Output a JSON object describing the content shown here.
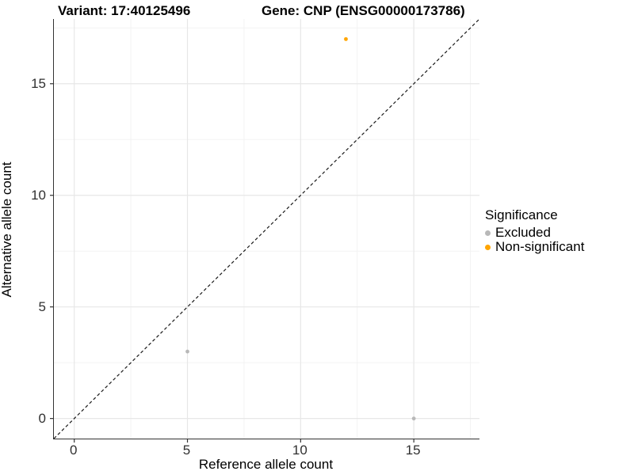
{
  "title": {
    "variant": "Variant: 17:40125496",
    "gene": "Gene: CNP (ENSG00000173786)"
  },
  "chart_data": {
    "type": "scatter",
    "xlabel": "Reference allele count",
    "ylabel": "Alternative allele count",
    "xlim": [
      -0.9,
      17.9
    ],
    "ylim": [
      -0.9,
      17.9
    ],
    "x_ticks": [
      0,
      5,
      10,
      15
    ],
    "y_ticks": [
      0,
      5,
      10,
      15
    ],
    "minor_step": 2.5,
    "grid": true,
    "abline": {
      "slope": 1,
      "intercept": 0,
      "dash": true,
      "color": "#1a1a1a"
    },
    "series": [
      {
        "name": "Excluded",
        "color": "#b8b8b8",
        "points": [
          [
            5,
            3
          ],
          [
            15,
            0
          ]
        ]
      },
      {
        "name": "Non-significant",
        "color": "#ffa500",
        "points": [
          [
            12,
            17
          ]
        ]
      }
    ],
    "legend": {
      "title": "Significance",
      "position": "right"
    }
  },
  "colors": {
    "major_grid": "#e7e7e7",
    "minor_grid": "#f3f3f3",
    "axis_line": "#333333",
    "tick_mark": "#333333",
    "background": "#ffffff"
  }
}
